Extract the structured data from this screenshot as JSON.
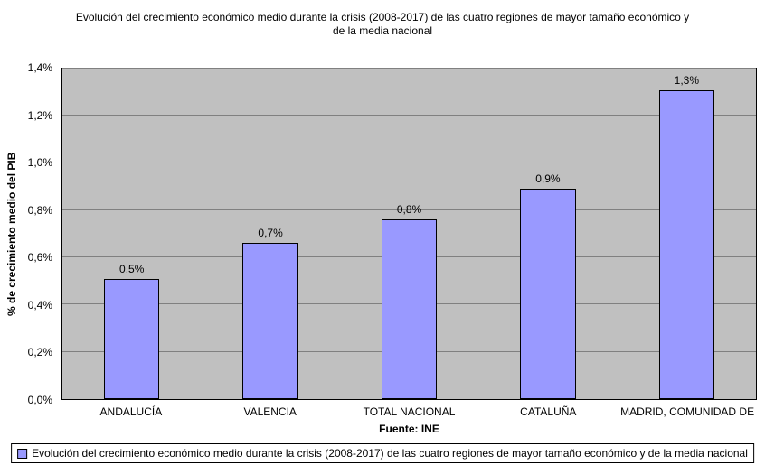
{
  "title": {
    "line1": "Evolución del crecimiento económico medio durante la crisis (2008-2017) de las cuatro regiones de mayor tamaño económico y",
    "line2": "de la media nacional"
  },
  "chart_data": {
    "type": "bar",
    "categories": [
      "ANDALUCÍA",
      "VALENCIA",
      "TOTAL NACIONAL",
      "CATALUÑA",
      "MADRID, COMUNIDAD DE"
    ],
    "values": [
      0.51,
      0.66,
      0.76,
      0.89,
      1.31
    ],
    "value_labels": [
      "0,5%",
      "0,7%",
      "0,8%",
      "0,9%",
      "1,3%"
    ],
    "ylabel": "% de crecimiento medio del PIB",
    "xlabel": "Fuente: INE",
    "ylim": [
      0,
      1.4
    ],
    "ytick_step": 0.2,
    "yticks": [
      "0,0%",
      "0,2%",
      "0,4%",
      "0,6%",
      "0,8%",
      "1,0%",
      "1,2%",
      "1,4%"
    ],
    "grid": true,
    "legend": "Evolución del crecimiento económico medio durante la crisis (2008-2017) de las cuatro regiones de mayor tamaño económico y de la media nacional",
    "legend_position": "bottom",
    "bar_color": "#9999FF",
    "bar_border_color": "#000000",
    "plot_bg": "#C0C0C0",
    "grid_color": "#808080"
  }
}
